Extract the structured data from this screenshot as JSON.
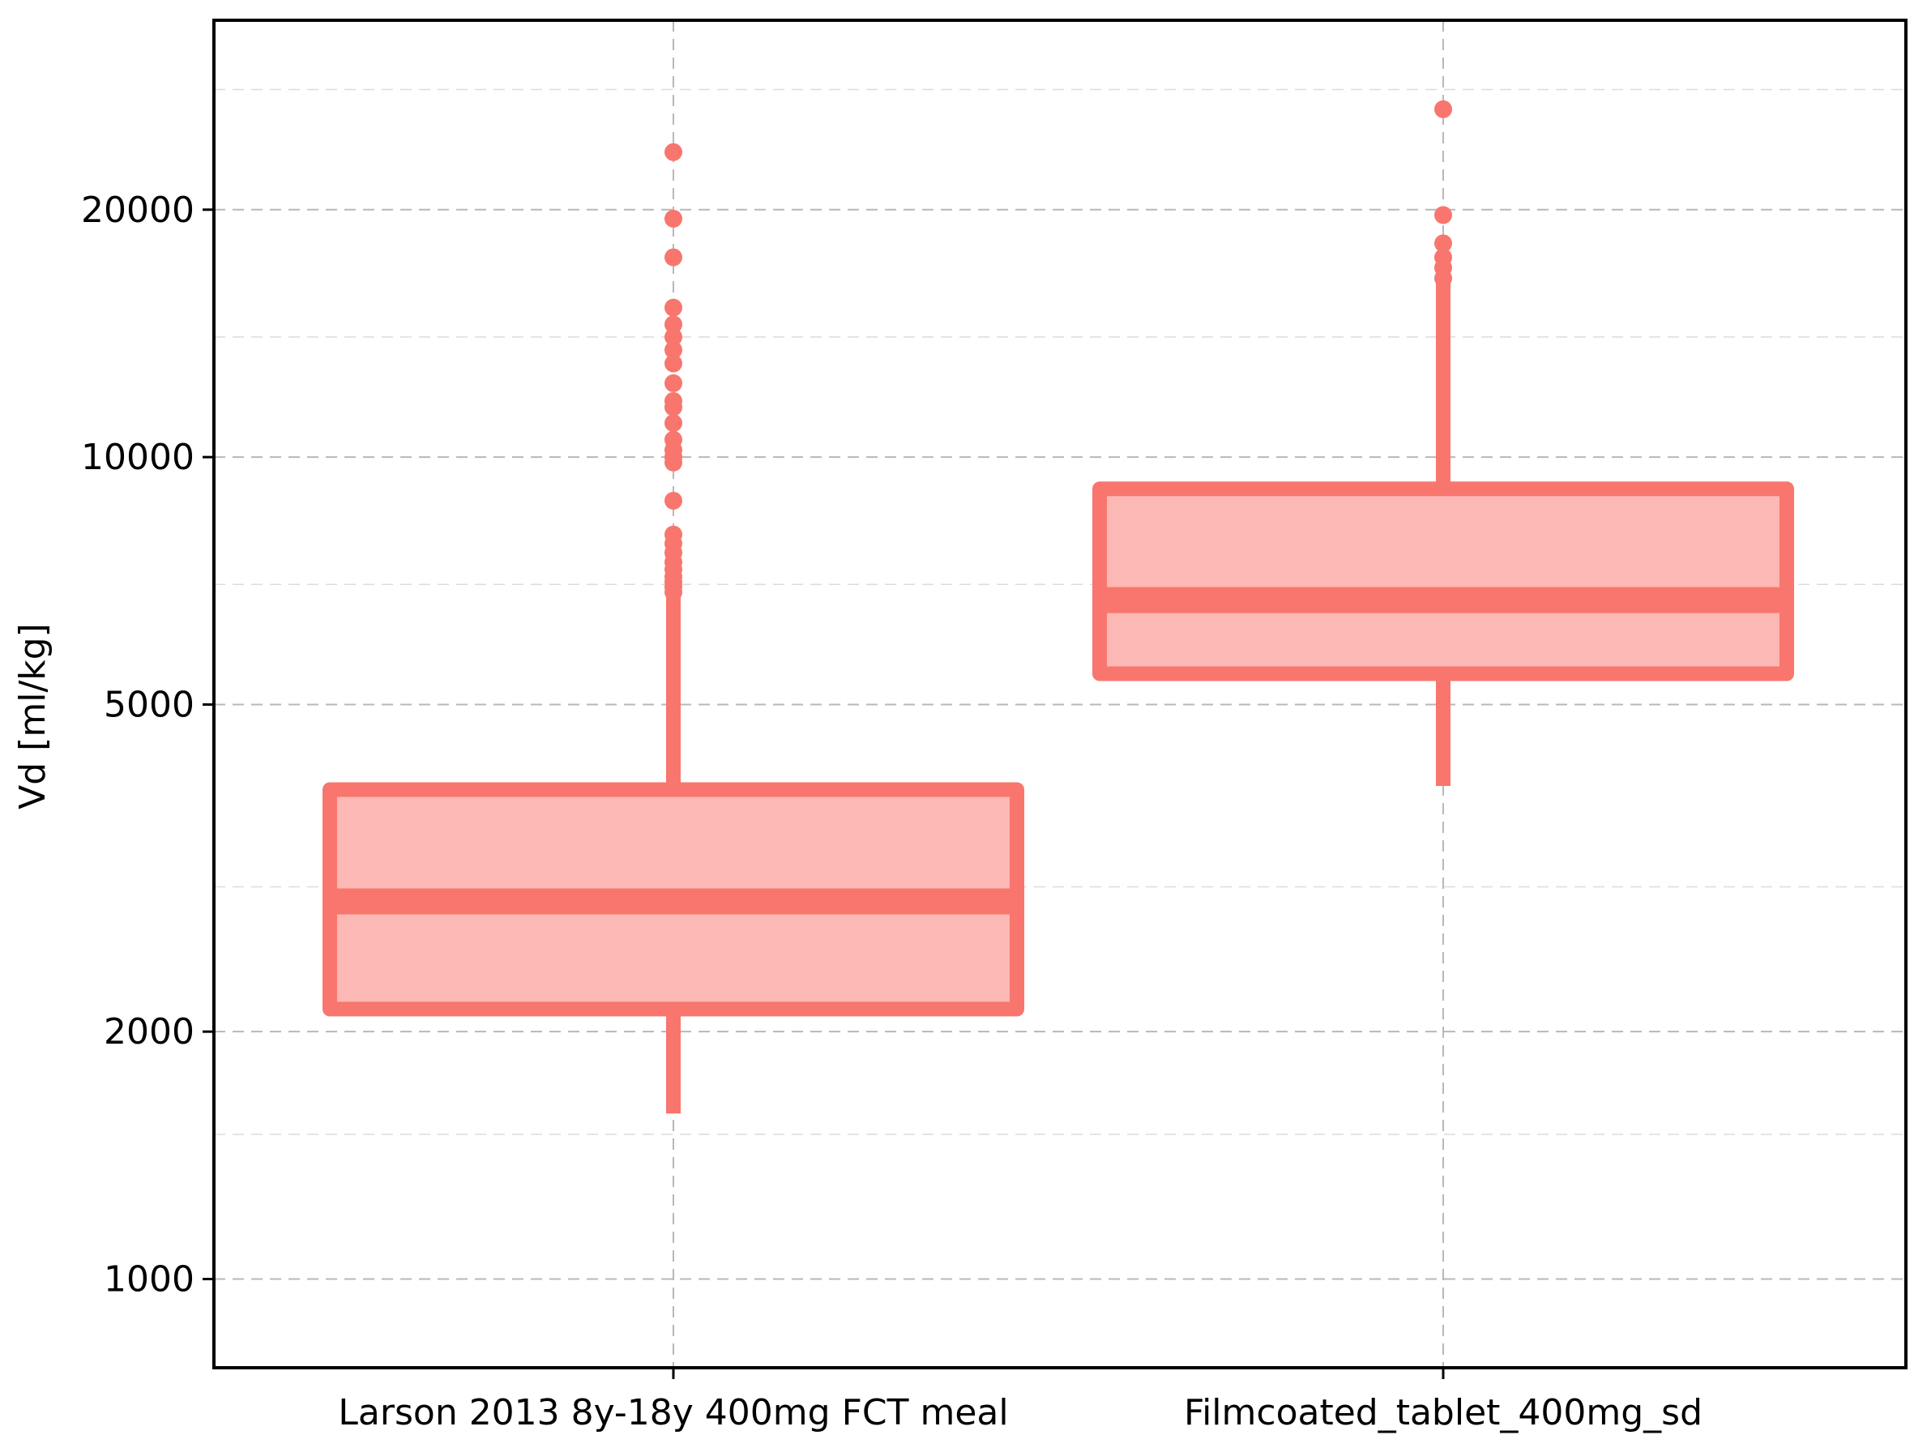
{
  "chart_data": {
    "type": "box",
    "title": "",
    "xlabel": "",
    "ylabel": "Vd [ml/kg]",
    "yscale": "log",
    "ylim": [
      780,
      34000
    ],
    "yticks": [
      1000,
      2000,
      5000,
      10000,
      20000
    ],
    "ytick_labels": [
      "1000",
      "2000",
      "5000",
      "10000",
      "20000"
    ],
    "y_minor_grid": [
      1500,
      3000,
      7000,
      14000,
      28000
    ],
    "grid": true,
    "color": "#F8766D",
    "fill_color": "#FBB8B4",
    "categories": [
      "Larson 2013 8y-18y 400mg FCT meal",
      "Filmcoated_tablet_400mg_sd"
    ],
    "boxes": [
      {
        "category": "Larson 2013 8y-18y 400mg FCT meal",
        "whisker_low": 1590,
        "q1": 2130,
        "median": 2880,
        "q3": 3940,
        "whisker_high": 6750,
        "outliers": [
          6850,
          6950,
          7050,
          7150,
          7300,
          7450,
          7650,
          7850,
          8050,
          8850,
          9850,
          10000,
          10200,
          10500,
          11000,
          11500,
          11700,
          12300,
          13000,
          13500,
          14000,
          14500,
          15200,
          17500,
          19500,
          23500
        ]
      },
      {
        "category": "Filmcoated_tablet_400mg_sd",
        "whisker_low": 3980,
        "q1": 5450,
        "median": 6700,
        "q3": 9150,
        "whisker_high": 16300,
        "outliers": [
          16500,
          17000,
          17500,
          18200,
          19700,
          26500
        ]
      }
    ]
  }
}
